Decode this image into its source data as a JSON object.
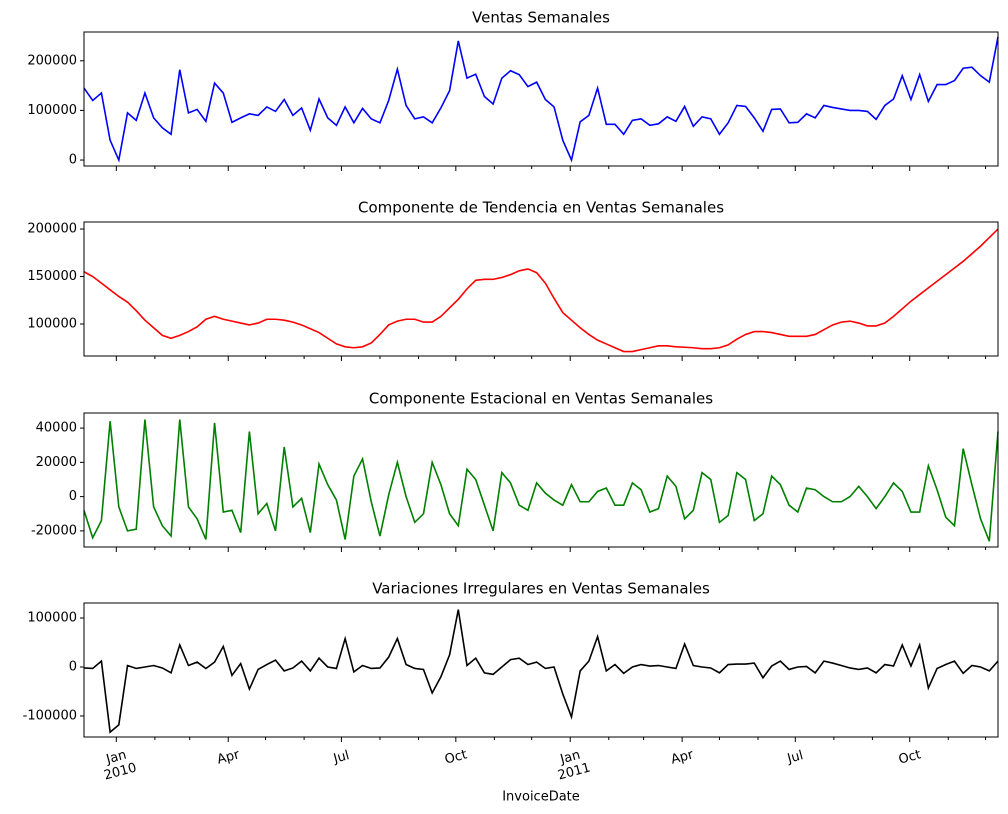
{
  "chart_data": [
    {
      "type": "line",
      "title": "Ventas Semanales",
      "color": "blue",
      "ylim": [
        -12000,
        258000
      ],
      "yticks": [
        0,
        100000,
        200000
      ],
      "values": [
        145000,
        120000,
        135000,
        40000,
        0,
        95000,
        80000,
        135000,
        85000,
        65000,
        52000,
        182000,
        95000,
        102000,
        78000,
        155000,
        135000,
        76000,
        85000,
        93000,
        90000,
        107000,
        98000,
        122000,
        90000,
        105000,
        60000,
        123000,
        85000,
        70000,
        107000,
        75000,
        104000,
        83000,
        75000,
        120000,
        183000,
        110000,
        83000,
        87000,
        75000,
        105000,
        140000,
        240000,
        165000,
        173000,
        128000,
        113000,
        165000,
        180000,
        172000,
        148000,
        157000,
        122000,
        107000,
        40000,
        0,
        77000,
        90000,
        145000,
        72000,
        72000,
        52000,
        80000,
        83000,
        70000,
        73000,
        87000,
        78000,
        108000,
        68000,
        87000,
        83000,
        52000,
        75000,
        110000,
        108000,
        85000,
        58000,
        102000,
        103000,
        75000,
        76000,
        93000,
        85000,
        110000,
        106000,
        103000,
        100000,
        100000,
        98000,
        82000,
        110000,
        123000,
        170000,
        122000,
        172000,
        118000,
        152000,
        152000,
        160000,
        185000,
        187000,
        170000,
        157000,
        248000
      ]
    },
    {
      "type": "line",
      "title": "Componente de Tendencia en Ventas Semanales",
      "color": "red",
      "ylim": [
        66300,
        207400
      ],
      "yticks": [
        100000,
        150000,
        200000
      ],
      "values": [
        155000,
        150000,
        143000,
        136000,
        129000,
        123000,
        114000,
        104000,
        96000,
        88000,
        85000,
        88000,
        92000,
        97000,
        105000,
        108000,
        105000,
        103000,
        101000,
        99000,
        101000,
        105000,
        105000,
        104000,
        102000,
        99000,
        95000,
        91000,
        85000,
        79000,
        76000,
        75000,
        76000,
        80000,
        89000,
        99000,
        103000,
        105000,
        105000,
        102000,
        102000,
        108000,
        117000,
        126000,
        137000,
        146000,
        147000,
        147000,
        149000,
        152000,
        156000,
        158000,
        154000,
        143000,
        127000,
        112000,
        104000,
        96000,
        89000,
        83000,
        79000,
        75000,
        71000,
        71000,
        73000,
        75000,
        77000,
        77000,
        76000,
        75500,
        75000,
        74000,
        74000,
        75000,
        78000,
        84000,
        89000,
        92000,
        92000,
        91000,
        89000,
        87000,
        87000,
        87000,
        89000,
        94000,
        99000,
        102000,
        103000,
        101000,
        98000,
        98000,
        101000,
        108000,
        116000,
        124000,
        131000,
        138000,
        145000,
        152000,
        159000,
        166000,
        174000,
        182000,
        191000,
        200000
      ]
    },
    {
      "type": "line",
      "title": "Componente Estacional en Ventas Semanales",
      "color": "green",
      "ylim": [
        -29400,
        48800
      ],
      "yticks": [
        -20000,
        0,
        20000,
        40000
      ],
      "values": [
        -8000,
        -24000,
        -14000,
        44000,
        -6000,
        -20000,
        -19000,
        45000,
        -6000,
        -17000,
        -23000,
        45000,
        -6000,
        -13000,
        -25000,
        43000,
        -9000,
        -8000,
        -21000,
        38000,
        -10000,
        -4000,
        -20000,
        29000,
        -6000,
        -1000,
        -21000,
        19000,
        7000,
        -2000,
        -25000,
        12000,
        22000,
        -3000,
        -23000,
        1000,
        20000,
        0,
        -15000,
        -10000,
        20000,
        7000,
        -10000,
        -17000,
        16000,
        10000,
        -5000,
        -20000,
        14000,
        8000,
        -5000,
        -8000,
        8000,
        2000,
        -2000,
        -5000,
        7000,
        -3000,
        -3000,
        3000,
        5000,
        -5000,
        -5000,
        8000,
        4000,
        -9000,
        -7000,
        12000,
        6000,
        -13000,
        -8000,
        14000,
        10000,
        -15000,
        -11000,
        14000,
        10000,
        -14000,
        -10000,
        12000,
        7000,
        -5000,
        -9000,
        5000,
        4000,
        0,
        -3000,
        -3000,
        0,
        6000,
        0,
        -7000,
        0,
        8000,
        3000,
        -9000,
        -9000,
        18000,
        4000,
        -12000,
        -17000,
        28000,
        7000,
        -13000,
        -26000,
        38000
      ]
    },
    {
      "type": "line",
      "title": "Variaciones Irregulares en Ventas Semanales",
      "color": "black",
      "ylim": [
        -142900,
        130600
      ],
      "yticks": [
        -100000,
        0,
        100000
      ],
      "xlabel": "InvoiceDate",
      "xlim": [
        "2009-12-06",
        "2011-12-11"
      ],
      "xticks": [
        {
          "value": "2010-01-01",
          "label": "Jan\n2010"
        },
        {
          "value": "2010-04-01",
          "label": "Apr"
        },
        {
          "value": "2010-07-01",
          "label": "Jul"
        },
        {
          "value": "2010-10-01",
          "label": "Oct"
        },
        {
          "value": "2011-01-01",
          "label": "Jan\n2011"
        },
        {
          "value": "2011-04-01",
          "label": "Apr"
        },
        {
          "value": "2011-07-01",
          "label": "Jul"
        },
        {
          "value": "2011-10-01",
          "label": "Oct"
        }
      ],
      "xminorticks": [
        "2010-02-01",
        "2010-03-01",
        "2010-05-01",
        "2010-06-01",
        "2010-08-01",
        "2010-09-01",
        "2010-11-01",
        "2010-12-01",
        "2011-02-01",
        "2011-03-01",
        "2011-05-01",
        "2011-06-01",
        "2011-08-01",
        "2011-09-01",
        "2011-11-01",
        "2011-12-01"
      ],
      "values": [
        -2000,
        -3000,
        12000,
        -133000,
        -118000,
        3000,
        -3000,
        0,
        3000,
        -2000,
        -12000,
        45000,
        3000,
        10000,
        -3000,
        10000,
        42000,
        -17000,
        7000,
        -45000,
        -5000,
        5000,
        14000,
        -8000,
        -2000,
        12000,
        -8000,
        18000,
        0,
        -3000,
        58000,
        -10000,
        3000,
        -3000,
        -2000,
        20000,
        58000,
        5000,
        -3000,
        -5000,
        -53000,
        -20000,
        25000,
        117000,
        3000,
        18000,
        -12000,
        -15000,
        0,
        15000,
        18000,
        5000,
        10000,
        -3000,
        0,
        -55000,
        -102000,
        -8000,
        12000,
        62000,
        -8000,
        5000,
        -13000,
        0,
        5000,
        2000,
        3000,
        0,
        -3000,
        47000,
        3000,
        0,
        -2000,
        -12000,
        5000,
        6000,
        6000,
        8000,
        -22000,
        2000,
        12000,
        -5000,
        0,
        1000,
        -12000,
        12000,
        8000,
        3000,
        -2000,
        -5000,
        -2000,
        -12000,
        5000,
        2000,
        45000,
        2000,
        45000,
        -43000,
        -3000,
        5000,
        12000,
        -13000,
        3000,
        0,
        -8000,
        12000
      ]
    }
  ]
}
